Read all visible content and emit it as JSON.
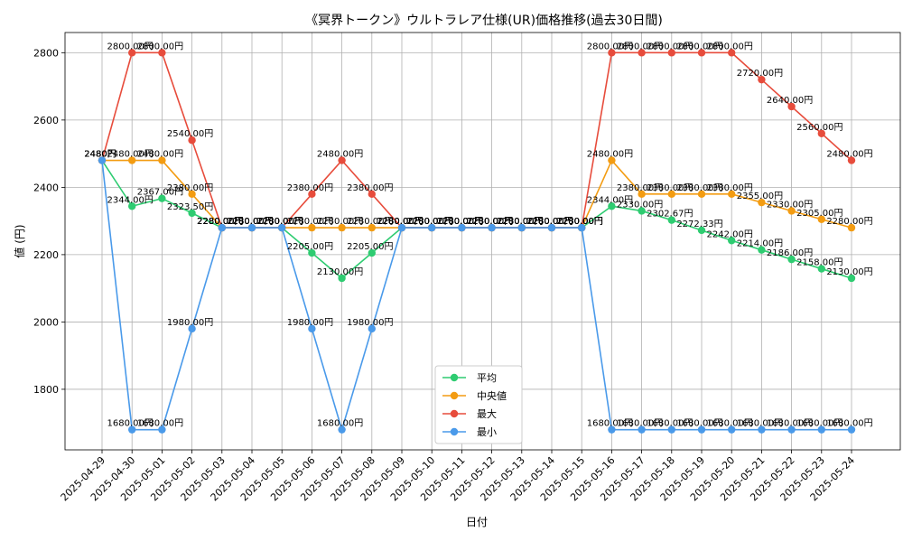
{
  "chart_data": {
    "type": "line",
    "title": "《冥界トークン》ウルトラレア仕様(UR)価格推移(過去30日間)",
    "xlabel": "日付",
    "ylabel": "値 (円)",
    "ylim": [
      1620,
      2860
    ],
    "yticks": [
      1800,
      2000,
      2200,
      2400,
      2600,
      2800
    ],
    "grid": true,
    "legend_position": "bottom-center",
    "label_suffix": "円",
    "x": [
      "2025-04-29",
      "2025-04-30",
      "2025-05-01",
      "2025-05-02",
      "2025-05-03",
      "2025-05-04",
      "2025-05-05",
      "2025-05-06",
      "2025-05-07",
      "2025-05-08",
      "2025-05-09",
      "2025-05-10",
      "2025-05-11",
      "2025-05-12",
      "2025-05-13",
      "2025-05-14",
      "2025-05-15",
      "2025-05-16",
      "2025-05-17",
      "2025-05-18",
      "2025-05-19",
      "2025-05-20",
      "2025-05-21",
      "2025-05-22",
      "2025-05-23",
      "2025-05-24"
    ],
    "series": [
      {
        "name": "平均",
        "color": "#2ecc71",
        "values": [
          2480,
          2344.0,
          2367.0,
          2323.5,
          2280,
          2280,
          2280,
          2205.0,
          2130.0,
          2205.0,
          2280,
          2280,
          2280,
          2280,
          2280,
          2280,
          2280,
          2344.0,
          2330.0,
          2302.67,
          2272.33,
          2242.0,
          2214.0,
          2186.0,
          2158.0,
          2130.0
        ]
      },
      {
        "name": "中央値",
        "color": "#f39c12",
        "values": [
          2480,
          2480.0,
          2480.0,
          2380.0,
          2280,
          2280,
          2280,
          2280.0,
          2280.0,
          2280.0,
          2280,
          2280,
          2280,
          2280,
          2280,
          2280,
          2280,
          2480.0,
          2380.0,
          2380.0,
          2380.0,
          2380.0,
          2355.0,
          2330.0,
          2305.0,
          2280.0
        ]
      },
      {
        "name": "最大",
        "color": "#e74c3c",
        "values": [
          2480,
          2800.0,
          2800.0,
          2540.0,
          2280,
          2280,
          2280,
          2380.0,
          2480.0,
          2380.0,
          2280,
          2280,
          2280,
          2280,
          2280,
          2280,
          2280,
          2800.0,
          2800.0,
          2800.0,
          2800.0,
          2800.0,
          2720.0,
          2640.0,
          2560.0,
          2480.0
        ]
      },
      {
        "name": "最小",
        "color": "#4a9aea",
        "values": [
          2480,
          1680.0,
          1680.0,
          1980.0,
          2280,
          2280,
          2280,
          1980.0,
          1680.0,
          1980.0,
          2280,
          2280,
          2280,
          2280,
          2280,
          2280,
          2280,
          1680.0,
          1680.0,
          1680.0,
          1680.0,
          1680.0,
          1680.0,
          1680.0,
          1680.0,
          1680.0
        ]
      }
    ]
  }
}
